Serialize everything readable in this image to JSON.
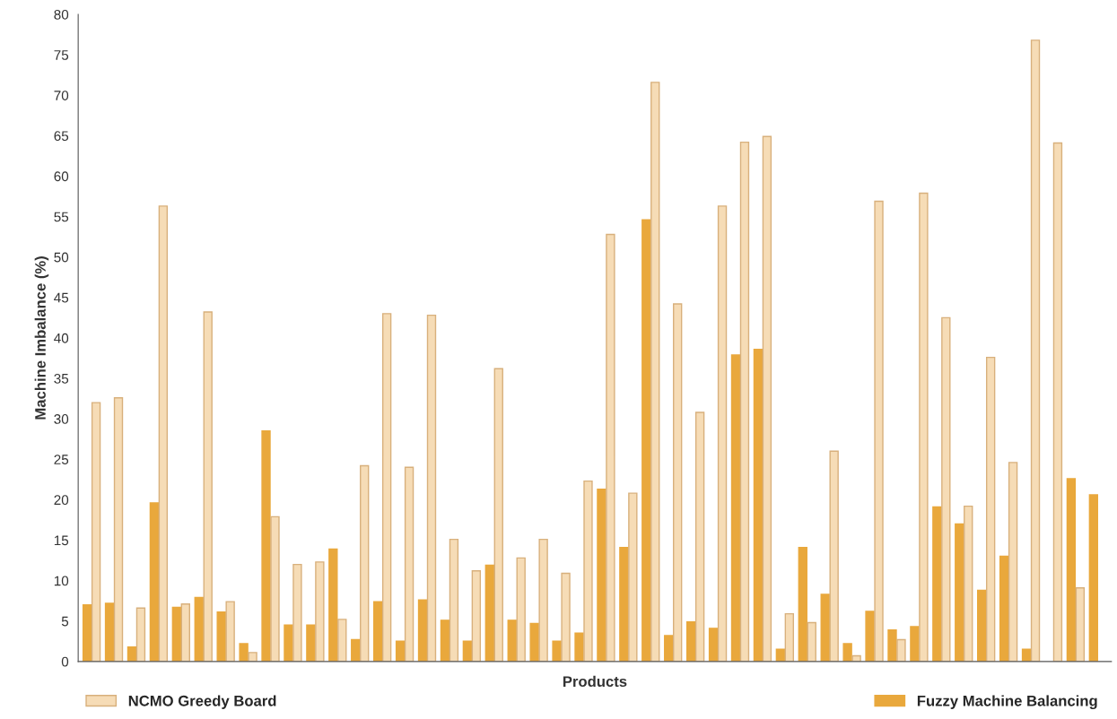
{
  "chart_data": {
    "type": "bar",
    "xlabel": "Products",
    "ylabel": "Machine Imbalance (%)",
    "categories": [
      null,
      null,
      null,
      null,
      null,
      null,
      null,
      null,
      null,
      null,
      null,
      null,
      null,
      null,
      null,
      null,
      null,
      null,
      null,
      null,
      null,
      null,
      null,
      null,
      null,
      null,
      null,
      null,
      null,
      null,
      null,
      null,
      null,
      null,
      null,
      null,
      null,
      null,
      null,
      null,
      null,
      null,
      null,
      null,
      null,
      null
    ],
    "series": [
      {
        "name": "Fuzzy Machine Balancing",
        "color": "#e9a83c",
        "values": [
          7,
          7.2,
          1.8,
          19.6,
          6.7,
          7.9,
          6.1,
          2.2,
          28.5,
          4.5,
          4.5,
          13.9,
          2.7,
          7.4,
          2.5,
          7.6,
          5.1,
          2.5,
          11.9,
          5.1,
          4.7,
          2.5,
          3.5,
          21.3,
          14.1,
          54.6,
          3.2,
          4.9,
          4.1,
          37.9,
          38.6,
          1.5,
          14.1,
          8.3,
          2.2,
          6.2,
          3.9,
          4.3,
          19.1,
          17.0,
          8.8,
          13.0,
          1.5,
          null,
          22.6,
          20.6
        ]
      },
      {
        "name": "NCMO Greedy Board",
        "color": "#f6dcb6",
        "values": [
          32,
          32.6,
          6.6,
          56.3,
          7.1,
          43.2,
          7.4,
          1.1,
          17.9,
          12.0,
          12.3,
          5.2,
          24.2,
          43.0,
          24.0,
          42.8,
          15.1,
          11.2,
          36.2,
          12.8,
          15.1,
          10.9,
          22.3,
          52.8,
          20.8,
          71.6,
          44.2,
          30.8,
          56.3,
          64.2,
          64.9,
          5.9,
          4.8,
          26.0,
          0.7,
          56.9,
          2.7,
          57.9,
          42.5,
          19.2,
          37.6,
          24.6,
          76.8,
          64.1,
          9.1,
          null
        ]
      }
    ],
    "ylim": [
      0,
      80
    ],
    "yticks": [
      0,
      5,
      10,
      15,
      20,
      25,
      30,
      35,
      40,
      45,
      50,
      55,
      60,
      65,
      70,
      75,
      80
    ],
    "legend": "bottom",
    "grid": false
  }
}
